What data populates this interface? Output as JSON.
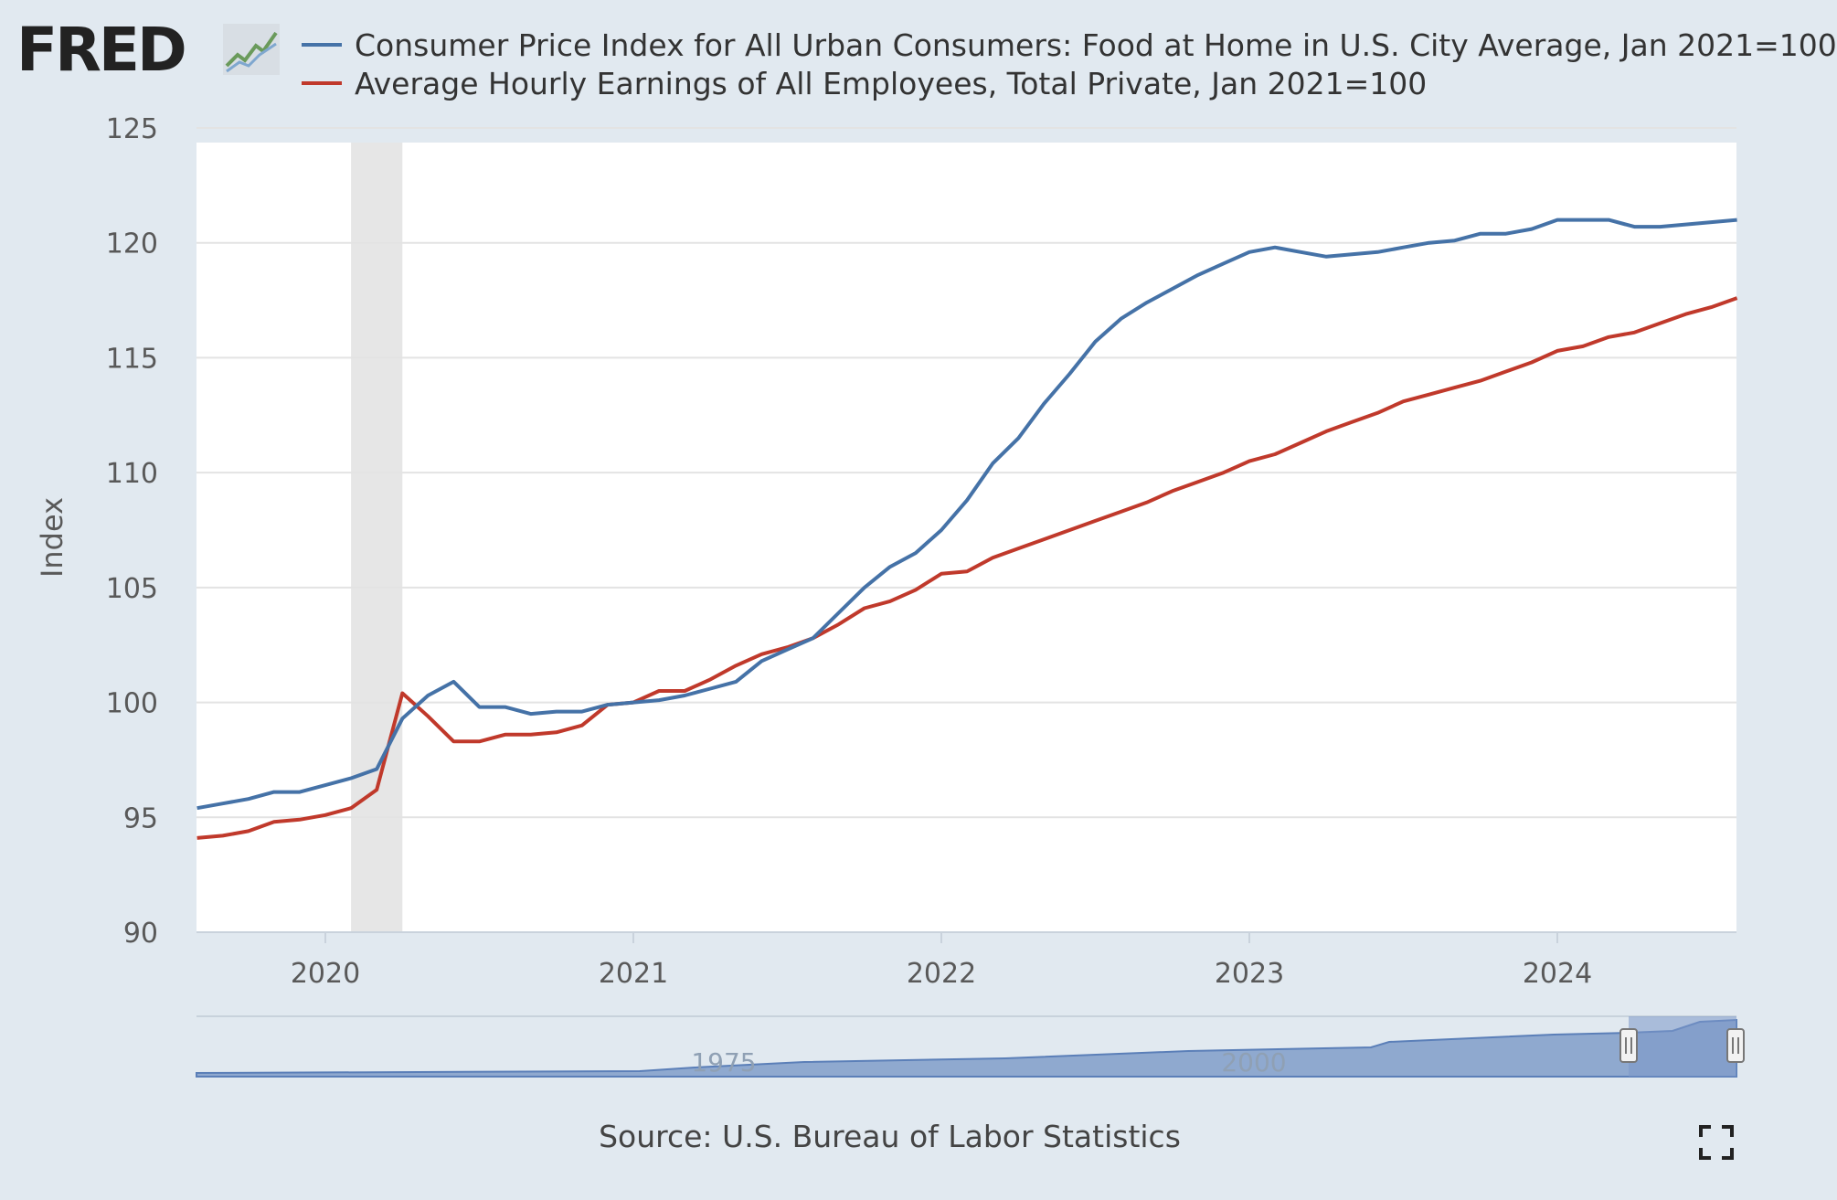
{
  "logo_text": "FRED",
  "chart_data": {
    "type": "line",
    "title": "",
    "xlabel": "",
    "ylabel": "Index",
    "ylim": [
      90,
      125
    ],
    "yticks": [
      90,
      95,
      100,
      105,
      110,
      115,
      120,
      125
    ],
    "xticks": [
      "2020",
      "2021",
      "2022",
      "2023",
      "2024"
    ],
    "legend_position": "top",
    "grid": true,
    "recession_shading": {
      "start": "2020-02",
      "end": "2020-04"
    },
    "series": [
      {
        "name": "Consumer Price Index for All Urban Consumers: Food at Home in U.S. City Average, Jan 2021=100",
        "color": "#4572a7",
        "x": [
          "2019-08",
          "2019-09",
          "2019-10",
          "2019-11",
          "2019-12",
          "2020-01",
          "2020-02",
          "2020-03",
          "2020-04",
          "2020-05",
          "2020-06",
          "2020-07",
          "2020-08",
          "2020-09",
          "2020-10",
          "2020-11",
          "2020-12",
          "2021-01",
          "2021-02",
          "2021-03",
          "2021-04",
          "2021-05",
          "2021-06",
          "2021-07",
          "2021-08",
          "2021-09",
          "2021-10",
          "2021-11",
          "2021-12",
          "2022-01",
          "2022-02",
          "2022-03",
          "2022-04",
          "2022-05",
          "2022-06",
          "2022-07",
          "2022-08",
          "2022-09",
          "2022-10",
          "2022-11",
          "2022-12",
          "2023-01",
          "2023-02",
          "2023-03",
          "2023-04",
          "2023-05",
          "2023-06",
          "2023-07",
          "2023-08",
          "2023-09",
          "2023-10",
          "2023-11",
          "2023-12",
          "2024-01",
          "2024-02",
          "2024-03",
          "2024-04",
          "2024-05",
          "2024-06",
          "2024-07",
          "2024-08"
        ],
        "values": [
          95.4,
          95.6,
          95.8,
          96.1,
          96.1,
          96.4,
          96.7,
          97.1,
          99.3,
          100.3,
          100.9,
          99.8,
          99.8,
          99.5,
          99.6,
          99.6,
          99.9,
          100.0,
          100.1,
          100.3,
          100.6,
          100.9,
          101.8,
          102.3,
          102.8,
          103.9,
          105.0,
          105.9,
          106.5,
          107.5,
          108.8,
          110.4,
          111.5,
          113.0,
          114.3,
          115.7,
          116.7,
          117.4,
          118.0,
          118.6,
          119.1,
          119.6,
          119.8,
          119.6,
          119.4,
          119.5,
          119.6,
          119.8,
          120.0,
          120.1,
          120.4,
          120.4,
          120.6,
          121.0,
          121.0,
          121.0,
          120.7,
          120.7,
          120.8,
          120.9,
          121.0
        ]
      },
      {
        "name": "Average Hourly Earnings of All Employees, Total Private, Jan 2021=100",
        "color": "#c0392b",
        "x": [
          "2019-08",
          "2019-09",
          "2019-10",
          "2019-11",
          "2019-12",
          "2020-01",
          "2020-02",
          "2020-03",
          "2020-04",
          "2020-05",
          "2020-06",
          "2020-07",
          "2020-08",
          "2020-09",
          "2020-10",
          "2020-11",
          "2020-12",
          "2021-01",
          "2021-02",
          "2021-03",
          "2021-04",
          "2021-05",
          "2021-06",
          "2021-07",
          "2021-08",
          "2021-09",
          "2021-10",
          "2021-11",
          "2021-12",
          "2022-01",
          "2022-02",
          "2022-03",
          "2022-04",
          "2022-05",
          "2022-06",
          "2022-07",
          "2022-08",
          "2022-09",
          "2022-10",
          "2022-11",
          "2022-12",
          "2023-01",
          "2023-02",
          "2023-03",
          "2023-04",
          "2023-05",
          "2023-06",
          "2023-07",
          "2023-08",
          "2023-09",
          "2023-10",
          "2023-11",
          "2023-12",
          "2024-01",
          "2024-02",
          "2024-03",
          "2024-04",
          "2024-05",
          "2024-06",
          "2024-07",
          "2024-08"
        ],
        "values": [
          94.1,
          94.2,
          94.4,
          94.8,
          94.9,
          95.1,
          95.4,
          96.2,
          100.4,
          99.4,
          98.3,
          98.3,
          98.6,
          98.6,
          98.7,
          99.0,
          99.9,
          100.0,
          100.5,
          100.5,
          101.0,
          101.6,
          102.1,
          102.4,
          102.8,
          103.4,
          104.1,
          104.4,
          104.9,
          105.6,
          105.7,
          106.3,
          106.7,
          107.1,
          107.5,
          107.9,
          108.3,
          108.7,
          109.2,
          109.6,
          110.0,
          110.5,
          110.8,
          111.3,
          111.8,
          112.2,
          112.6,
          113.1,
          113.4,
          113.7,
          114.0,
          114.4,
          114.8,
          115.3,
          115.5,
          115.9,
          116.1,
          116.5,
          116.9,
          117.2,
          117.6
        ]
      }
    ],
    "navigator": {
      "labels": [
        "1975",
        "2000"
      ],
      "selected_range": [
        "2019-08",
        "2024-08"
      ]
    }
  },
  "source_text": "Source: U.S. Bureau of Labor Statistics",
  "icons": {
    "fullscreen": "fullscreen-icon",
    "logo_graph": "line-graph-icon"
  }
}
